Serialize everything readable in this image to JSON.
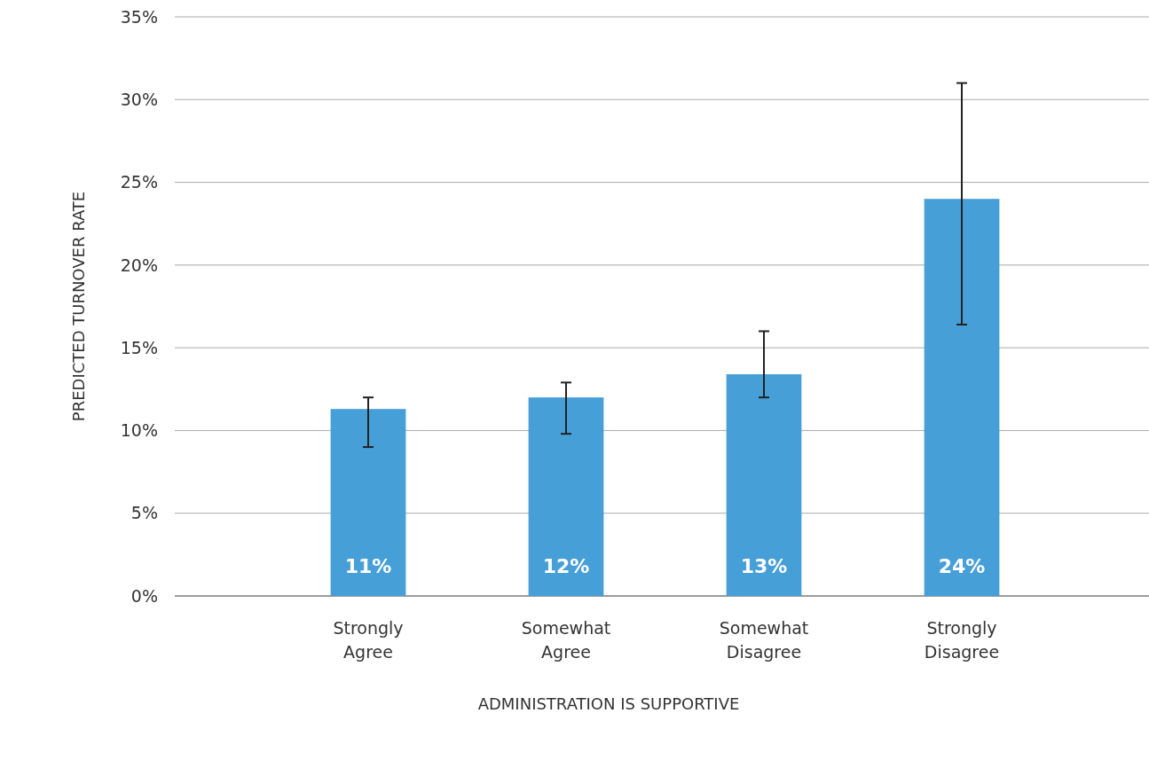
{
  "chart_data": {
    "type": "bar",
    "xlabel": "ADMINISTRATION IS SUPPORTIVE",
    "ylabel": "PREDICTED TURNOVER RATE",
    "categories": [
      "Strongly Agree",
      "Somewhat Agree",
      "Somewhat Disagree",
      "Strongly Disagree"
    ],
    "values": [
      11.3,
      12,
      13.4,
      24
    ],
    "errors": [
      [
        9,
        12
      ],
      [
        9.8,
        12.9
      ],
      [
        12,
        16
      ],
      [
        16.4,
        31
      ]
    ],
    "value_labels": [
      "11%",
      "12%",
      "13%",
      "24%"
    ],
    "color": "#479fd8",
    "ylim": [
      0,
      35
    ],
    "yticks": [
      {
        "value": 0,
        "label": "0%"
      },
      {
        "value": 5,
        "label": "5%"
      },
      {
        "value": 10,
        "label": "10%"
      },
      {
        "value": 15,
        "label": "15%"
      },
      {
        "value": 20,
        "label": "20%"
      },
      {
        "value": 25,
        "label": "25%"
      },
      {
        "value": 30,
        "label": "30%"
      },
      {
        "value": 35,
        "label": "35%"
      }
    ],
    "grid": "y"
  }
}
